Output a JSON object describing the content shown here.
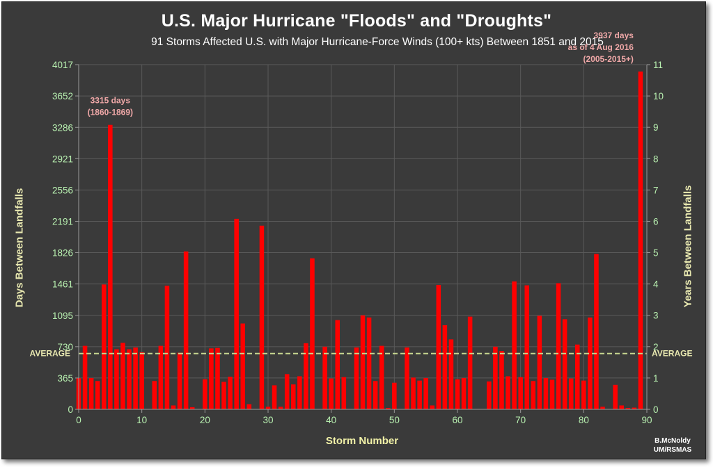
{
  "chart_data": {
    "type": "bar",
    "title": "U.S. Major Hurricane \"Floods\" and \"Droughts\"",
    "subtitle": "91 Storms Affected U.S. with Major Hurricane-Force Winds (100+ kts) Between 1851 and 2015",
    "xlabel": "Storm Number",
    "ylabel": "Days Between Landfalls",
    "ylabel_right": "Years Between Landfalls",
    "xlim": [
      0,
      90
    ],
    "ylim": [
      0,
      4017
    ],
    "ylim_right": [
      0,
      11
    ],
    "x_ticks": [
      "0",
      "10",
      "20",
      "30",
      "40",
      "50",
      "60",
      "70",
      "80",
      "90"
    ],
    "y_ticks": [
      "0",
      "365",
      "730",
      "1095",
      "1461",
      "1826",
      "2191",
      "2556",
      "2921",
      "3286",
      "3652",
      "4017"
    ],
    "y_ticks_right": [
      "0",
      "1",
      "2",
      "3",
      "4",
      "5",
      "6",
      "7",
      "8",
      "9",
      "10",
      "11"
    ],
    "grid": true,
    "bar_color": "#ff0000",
    "x": [
      0,
      1,
      2,
      3,
      4,
      5,
      6,
      7,
      8,
      9,
      10,
      11,
      12,
      13,
      14,
      15,
      16,
      17,
      18,
      19,
      20,
      21,
      22,
      23,
      24,
      25,
      26,
      27,
      28,
      29,
      30,
      31,
      32,
      33,
      34,
      35,
      36,
      37,
      38,
      39,
      40,
      41,
      42,
      43,
      44,
      45,
      46,
      47,
      48,
      49,
      50,
      51,
      52,
      53,
      54,
      55,
      56,
      57,
      58,
      59,
      60,
      61,
      62,
      63,
      64,
      65,
      66,
      67,
      68,
      69,
      70,
      71,
      72,
      73,
      74,
      75,
      76,
      77,
      78,
      79,
      80,
      81,
      82,
      83,
      84,
      85,
      86,
      87,
      88,
      89
    ],
    "values": [
      365,
      740,
      365,
      330,
      1455,
      3315,
      700,
      775,
      700,
      720,
      665,
      0,
      330,
      740,
      1440,
      45,
      660,
      1840,
      25,
      0,
      350,
      710,
      715,
      320,
      380,
      2220,
      1000,
      60,
      0,
      2140,
      30,
      280,
      30,
      410,
      290,
      385,
      770,
      1760,
      0,
      730,
      360,
      1040,
      375,
      0,
      720,
      1095,
      1070,
      330,
      740,
      15,
      310,
      0,
      720,
      370,
      335,
      365,
      45,
      1450,
      980,
      815,
      350,
      365,
      1080,
      0,
      0,
      325,
      730,
      680,
      385,
      1490,
      375,
      1445,
      330,
      1090,
      365,
      345,
      1470,
      1050,
      360,
      755,
      335,
      1070,
      1810,
      30,
      0,
      285,
      45,
      15,
      20,
      3937
    ],
    "average": 650,
    "average_label": "AVERAGE",
    "average_color": "#c8d890",
    "annotations": [
      {
        "x": 5,
        "lines": [
          "3315 days",
          "(1860-1869)"
        ]
      },
      {
        "x": 89,
        "lines": [
          "3937 days",
          "as of 4 Aug 2016",
          "(2005-2015+)"
        ]
      }
    ],
    "credit_lines": [
      "B.McNoldy",
      "UM/RSMAS"
    ]
  }
}
